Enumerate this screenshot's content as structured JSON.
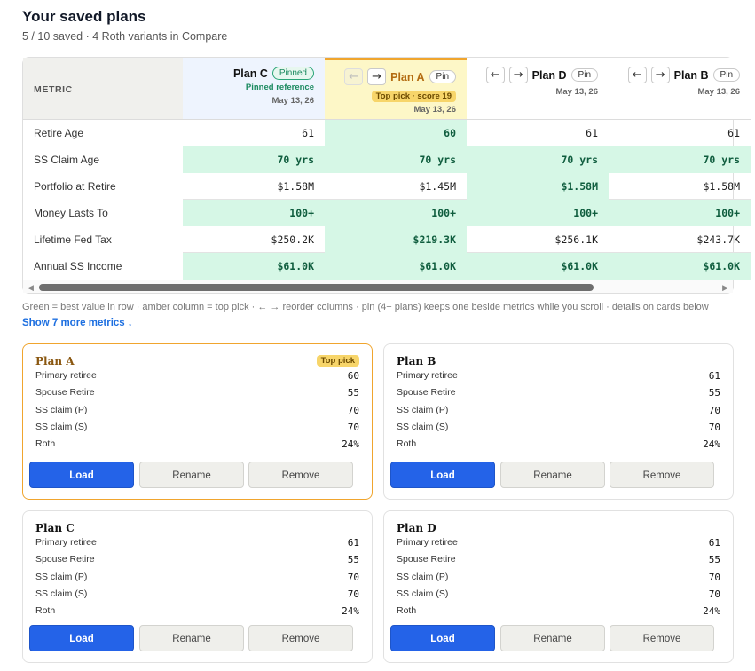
{
  "header": {
    "title": "Your saved plans",
    "subtitle": "5 / 10 saved · 4 Roth variants in Compare"
  },
  "compare": {
    "metric_header": "METRIC",
    "plans": [
      {
        "name": "Plan C",
        "pill": "Pinned",
        "note": "Pinned reference",
        "date": "May 13, 26"
      },
      {
        "name": "Plan A",
        "pill": "Pin",
        "badge": "Top pick · score 19",
        "date": "May 13, 26",
        "left_arrow": "←",
        "right_arrow": "→"
      },
      {
        "name": "Plan D",
        "pill": "Pin",
        "date": "May 13, 26",
        "left_arrow": "←",
        "right_arrow": "→"
      },
      {
        "name": "Plan B",
        "pill": "Pin",
        "date": "May 13, 26",
        "left_arrow": "←",
        "right_arrow": "→"
      }
    ],
    "rows": [
      {
        "metric": "Retire Age",
        "values": [
          "61",
          "60",
          "61",
          "61"
        ],
        "best": [
          false,
          true,
          false,
          false
        ]
      },
      {
        "metric": "SS Claim Age",
        "values": [
          "70 yrs",
          "70 yrs",
          "70 yrs",
          "70 yrs"
        ],
        "best": [
          true,
          true,
          true,
          true
        ]
      },
      {
        "metric": "Portfolio at Retire",
        "values": [
          "$1.58M",
          "$1.45M",
          "$1.58M",
          "$1.58M"
        ],
        "best": [
          false,
          false,
          true,
          false
        ]
      },
      {
        "metric": "Money Lasts To",
        "values": [
          "100+",
          "100+",
          "100+",
          "100+"
        ],
        "best": [
          true,
          true,
          true,
          true
        ]
      },
      {
        "metric": "Lifetime Fed Tax",
        "values": [
          "$250.2K",
          "$219.3K",
          "$256.1K",
          "$243.7K"
        ],
        "best": [
          false,
          true,
          false,
          false
        ]
      },
      {
        "metric": "Annual SS Income",
        "values": [
          "$61.0K",
          "$61.0K",
          "$61.0K",
          "$61.0K"
        ],
        "best": [
          true,
          true,
          true,
          true
        ]
      }
    ],
    "scroll_left": "◀",
    "scroll_right": "▶",
    "legend": "Green = best value in row · amber column = top pick · ← → reorder columns · pin (4+ plans) keeps one beside metrics while you scroll · details on cards below",
    "more_link": "Show 7 more metrics ↓"
  },
  "cards": [
    {
      "title": "Plan A",
      "badge": "Top pick",
      "fields": [
        [
          "Primary retiree",
          "60"
        ],
        [
          "Spouse Retire",
          "55"
        ],
        [
          "SS claim (P)",
          "70"
        ],
        [
          "SS claim (S)",
          "70"
        ],
        [
          "Roth",
          "24%"
        ]
      ],
      "load": "Load",
      "rename": "Rename",
      "remove": "Remove"
    },
    {
      "title": "Plan B",
      "fields": [
        [
          "Primary retiree",
          "61"
        ],
        [
          "Spouse Retire",
          "55"
        ],
        [
          "SS claim (P)",
          "70"
        ],
        [
          "SS claim (S)",
          "70"
        ],
        [
          "Roth",
          "24%"
        ]
      ],
      "load": "Load",
      "rename": "Rename",
      "remove": "Remove"
    },
    {
      "title": "Plan C",
      "fields": [
        [
          "Primary retiree",
          "61"
        ],
        [
          "Spouse Retire",
          "55"
        ],
        [
          "SS claim (P)",
          "70"
        ],
        [
          "SS claim (S)",
          "70"
        ],
        [
          "Roth",
          "24%"
        ]
      ],
      "load": "Load",
      "rename": "Rename",
      "remove": "Remove"
    },
    {
      "title": "Plan D",
      "fields": [
        [
          "Primary retiree",
          "61"
        ],
        [
          "Spouse Retire",
          "55"
        ],
        [
          "SS claim (P)",
          "70"
        ],
        [
          "SS claim (S)",
          "70"
        ],
        [
          "Roth",
          "24%"
        ]
      ],
      "load": "Load",
      "rename": "Rename",
      "remove": "Remove"
    }
  ],
  "colors": {
    "best": "#d6f7e6",
    "top_pick": "#fdf7c7",
    "pinned": "#eef4fe",
    "accent": "#2463e8",
    "top_border": "#f0a52e"
  }
}
